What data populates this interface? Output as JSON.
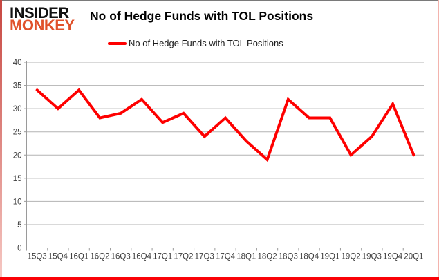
{
  "header": {
    "logo_line1": "INSIDER",
    "logo_line2": "MONKEY",
    "title": "No of Hedge Funds with TOL Positions"
  },
  "legend": {
    "label": "No of Hedge Funds with TOL Positions"
  },
  "colors": {
    "series_red": "#fe0000",
    "logo_orange": "#e0512b",
    "gridline": "#b3b3b3",
    "axis": "#9a9a9a",
    "tick_label": "#3d3d3d",
    "frame_bottom": "#fb0207"
  },
  "chart_data": {
    "type": "line",
    "title": "No of Hedge Funds with TOL Positions",
    "categories": [
      "15Q3",
      "15Q4",
      "16Q1",
      "16Q2",
      "16Q3",
      "16Q4",
      "17Q1",
      "17Q2",
      "17Q3",
      "17Q4",
      "18Q1",
      "18Q2",
      "18Q3",
      "18Q4",
      "19Q1",
      "19Q2",
      "19Q3",
      "19Q4",
      "20Q1"
    ],
    "series": [
      {
        "name": "No of Hedge Funds with TOL Positions",
        "values": [
          34,
          30,
          34,
          28,
          29,
          32,
          27,
          29,
          24,
          28,
          23,
          19,
          32,
          28,
          28,
          20,
          24,
          31,
          20
        ]
      }
    ],
    "xlabel": "",
    "ylabel": "",
    "ylim": [
      0,
      40
    ],
    "ytick_step": 5,
    "grid": true,
    "legend_position": "top"
  }
}
